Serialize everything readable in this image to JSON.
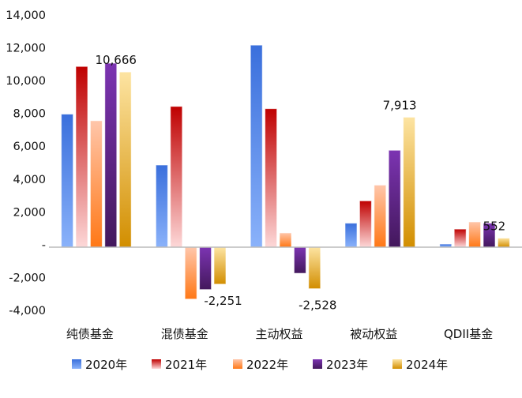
{
  "chart_data": {
    "type": "bar",
    "title": "",
    "xlabel": "",
    "ylabel": "",
    "ylim": [
      -4000,
      14000
    ],
    "yticks": [
      {
        "value": 14000,
        "label": "14,000"
      },
      {
        "value": 12000,
        "label": "12,000"
      },
      {
        "value": 10000,
        "label": "10,000"
      },
      {
        "value": 8000,
        "label": "8,000"
      },
      {
        "value": 6000,
        "label": "6,000"
      },
      {
        "value": 4000,
        "label": "4,000"
      },
      {
        "value": 2000,
        "label": "2,000"
      },
      {
        "value": 0,
        "label": "-"
      },
      {
        "value": -2000,
        "label": "-2,000"
      },
      {
        "value": -4000,
        "label": "-4,000"
      }
    ],
    "grid": false,
    "legend_position": "bottom",
    "categories": [
      "纯债基金",
      "混债基金",
      "主动权益",
      "被动权益",
      "QDII基金"
    ],
    "series": [
      {
        "name": "2020年",
        "values": [
          8100,
          5000,
          12300,
          1460,
          190
        ],
        "colors": [
          "#3a6fdc",
          "#8ab2fa"
        ]
      },
      {
        "name": "2021年",
        "values": [
          11000,
          8570,
          8430,
          2820,
          1100
        ],
        "colors": [
          "#bf0000",
          "#fdd8d8"
        ]
      },
      {
        "name": "2022年",
        "values": [
          7700,
          -3160,
          870,
          3780,
          1540
        ],
        "colors": [
          "#ffc6aa",
          "#ff7816"
        ]
      },
      {
        "name": "2023年",
        "values": [
          11200,
          -2580,
          -1590,
          5900,
          1460
        ],
        "colors": [
          "#7c34b2",
          "#43185c"
        ]
      },
      {
        "name": "2024年",
        "values": [
          10666,
          -2251,
          -2528,
          7913,
          552
        ],
        "colors": [
          "#fde4a2",
          "#d28e00"
        ]
      }
    ],
    "data_labels": [
      {
        "series": 4,
        "category": 0,
        "text": "10,666"
      },
      {
        "series": 4,
        "category": 1,
        "text": "-2,251"
      },
      {
        "series": 4,
        "category": 2,
        "text": "-2,528"
      },
      {
        "series": 4,
        "category": 3,
        "text": "7,913"
      },
      {
        "series": 4,
        "category": 4,
        "text": "552"
      }
    ]
  }
}
